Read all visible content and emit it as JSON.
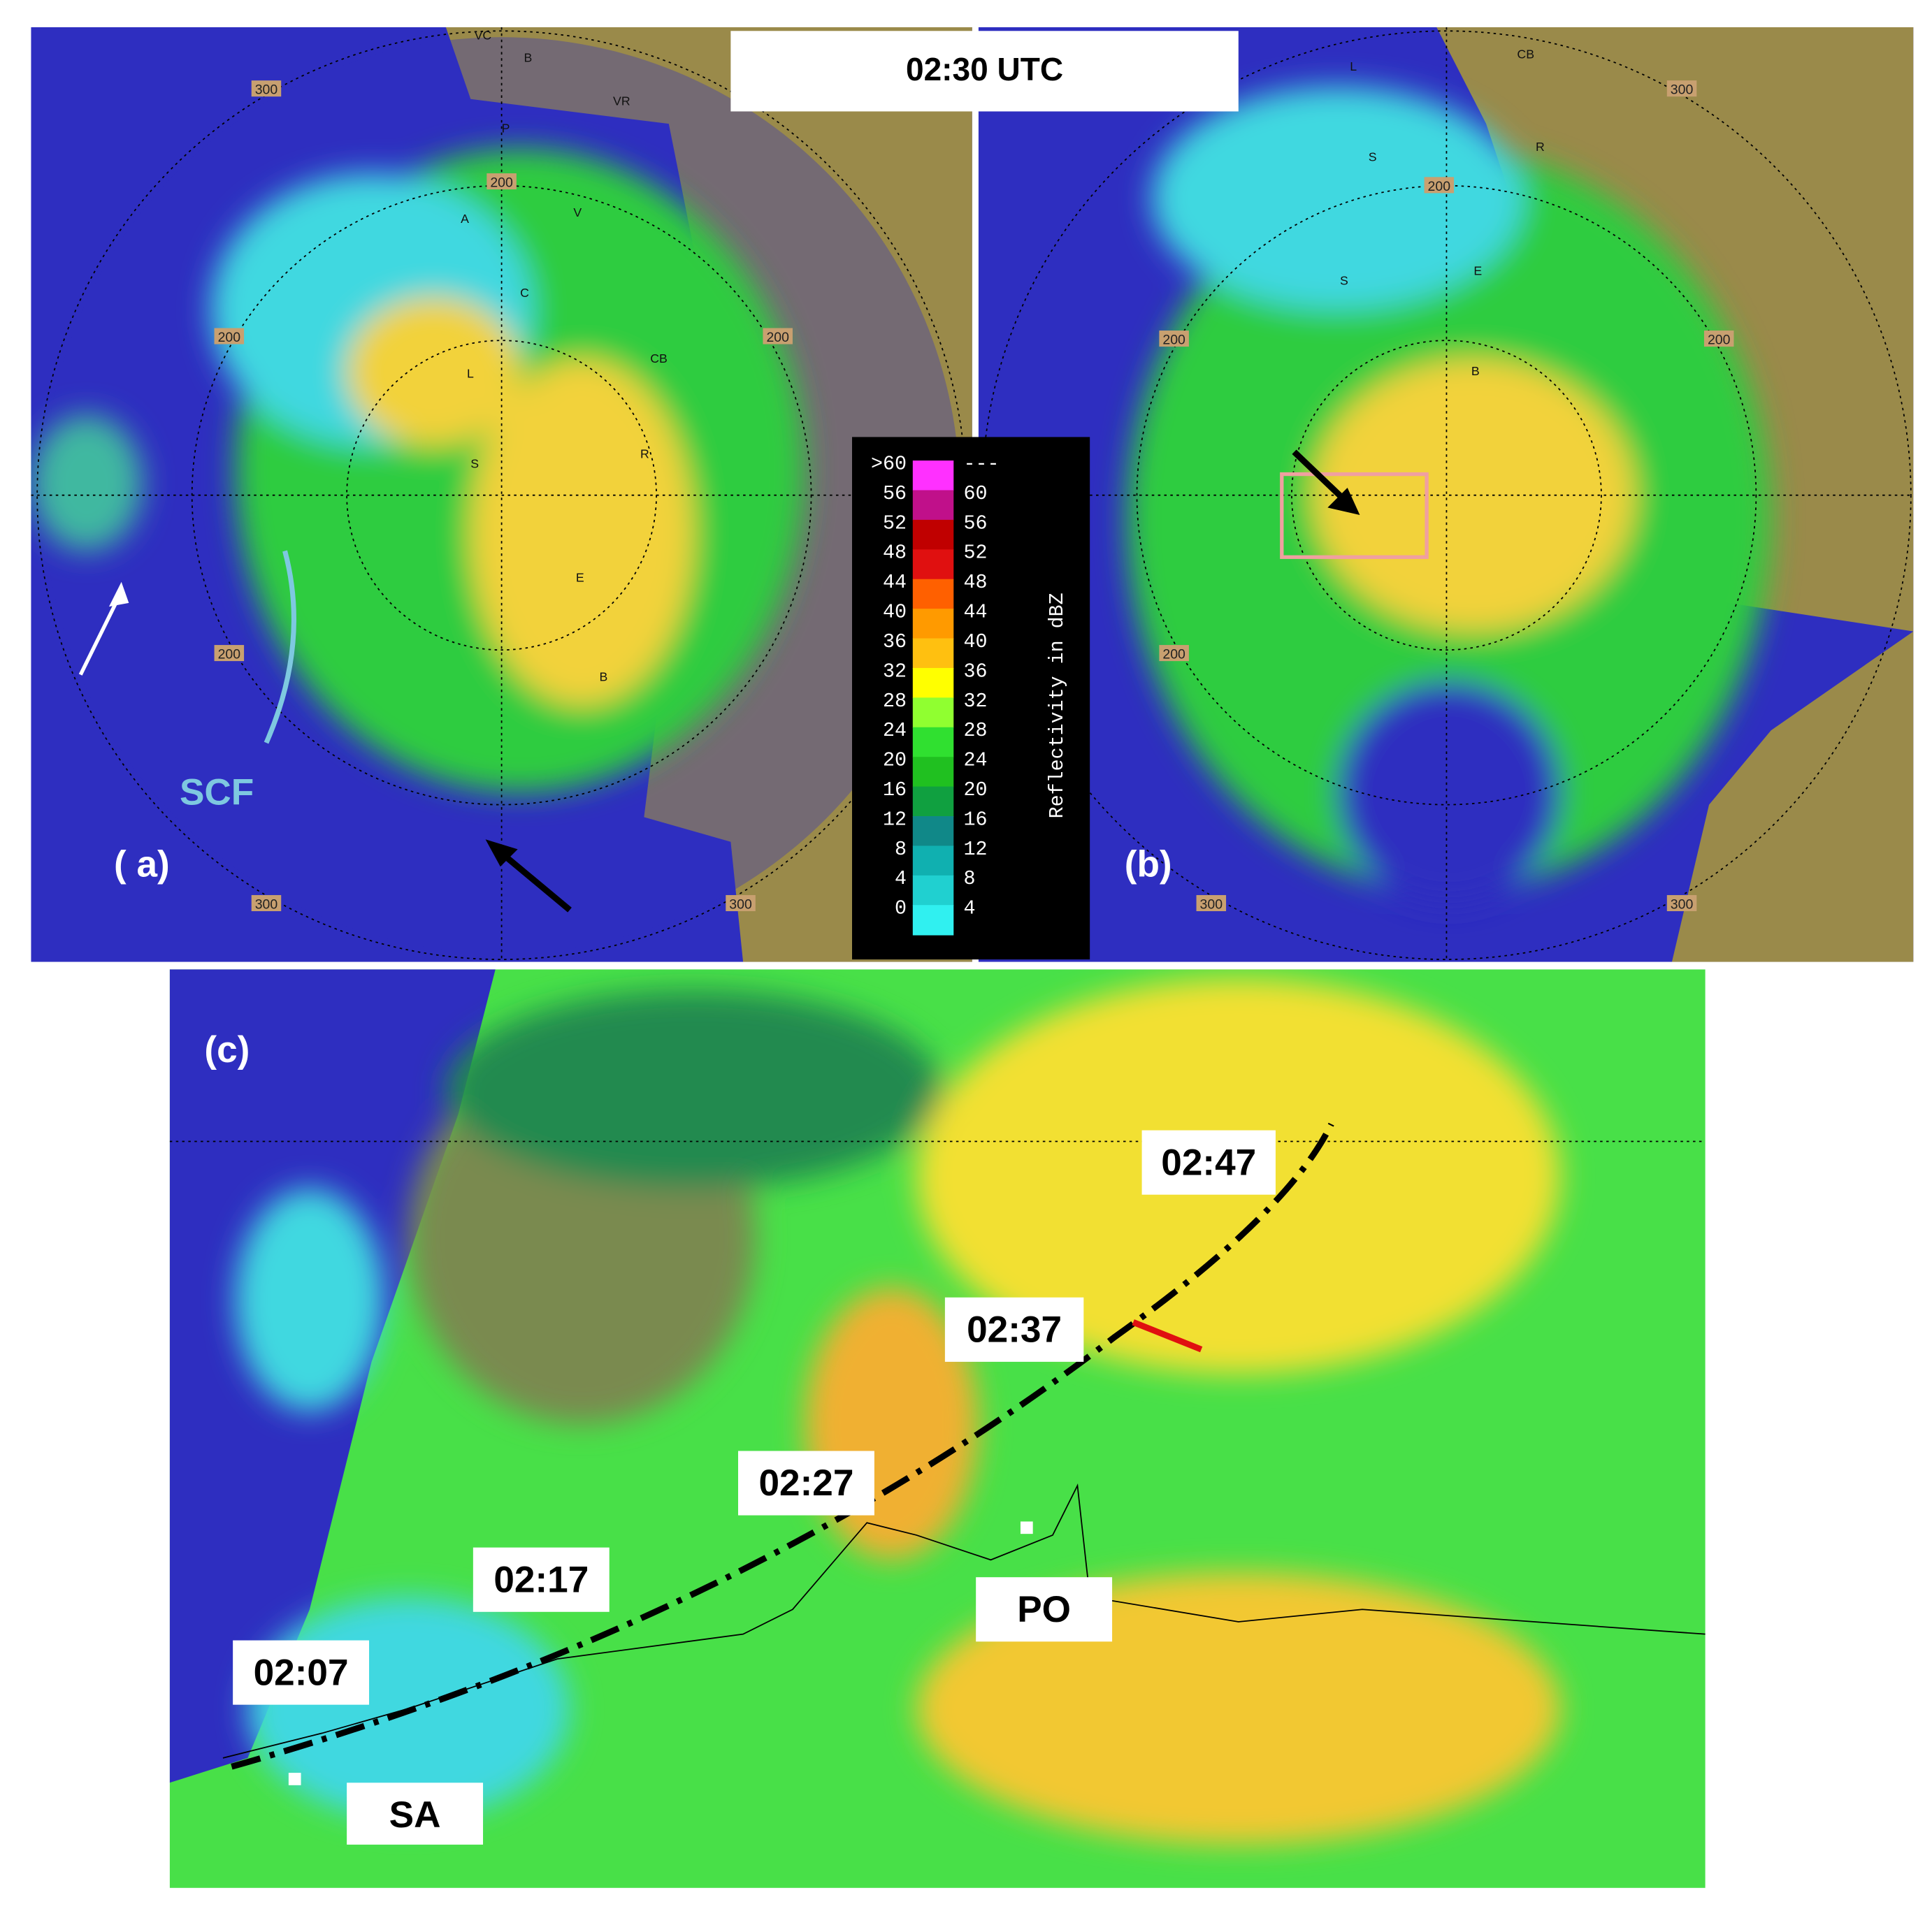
{
  "header": {
    "time": "02:30 UTC"
  },
  "panel_a": {
    "label": "( a)",
    "annotation": "SCF",
    "range_labels": [
      "300",
      "200",
      "200",
      "200",
      "200",
      "300",
      "300"
    ],
    "places": [
      "VC",
      "B",
      "VR",
      "P",
      "A",
      "V",
      "C",
      "L",
      "CB",
      "S",
      "R",
      "E",
      "B"
    ]
  },
  "panel_b": {
    "label": "(b)",
    "range_labels": [
      "300",
      "200",
      "200",
      "200",
      "200",
      "300",
      "300"
    ],
    "places": [
      "CB",
      "L",
      "S",
      "R",
      "E",
      "S",
      "B"
    ]
  },
  "legend": {
    "title": "Reflectivity in dBZ",
    "left": [
      ">60",
      "56",
      "52",
      "48",
      "44",
      "40",
      "36",
      "32",
      "28",
      "24",
      "20",
      "16",
      "12",
      "8",
      "4",
      "0"
    ],
    "right": [
      "---",
      "60",
      "56",
      "52",
      "48",
      "44",
      "40",
      "36",
      "32",
      "28",
      "24",
      "20",
      "16",
      "12",
      "8",
      "4"
    ]
  },
  "panel_c": {
    "label": "(c)",
    "times": [
      "02:07",
      "02:17",
      "02:27",
      "02:37",
      "02:47"
    ],
    "sites": [
      "SA",
      "PO"
    ]
  }
}
